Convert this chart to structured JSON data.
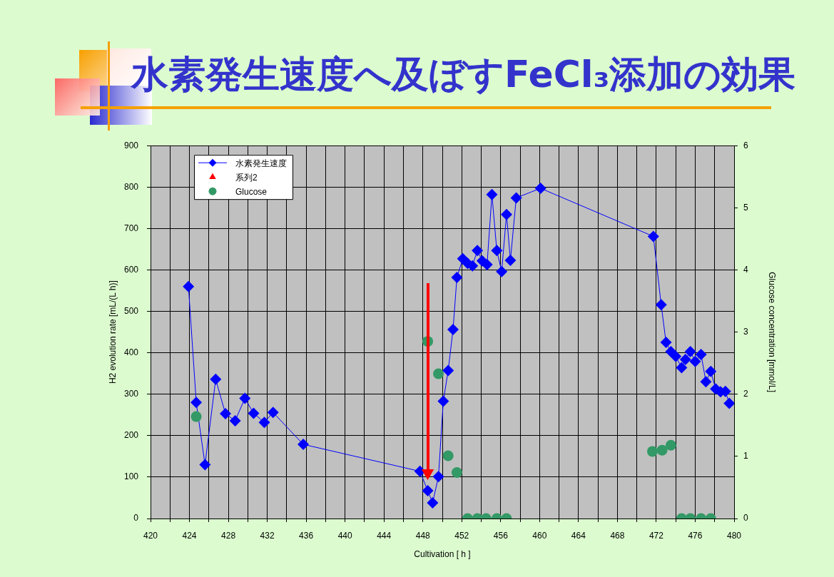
{
  "chart_data": {
    "type": "line",
    "title": "水素発生速度へ及ぼすFeCl₃添加の効果",
    "xlabel": "Cultivation [ h ]",
    "ylabel": "H2 evolution rate [mL/(L h)]",
    "y2label": "Glucose concentration [mmol/L]",
    "xlim": [
      420,
      480
    ],
    "xticks": [
      420,
      {
        "value": 422,
        "label": null
      },
      424,
      {
        "value": 426,
        "label": null
      },
      428,
      {
        "value": 430,
        "label": null
      },
      432,
      {
        "value": 434,
        "label": null
      },
      436,
      {
        "value": 438,
        "label": null
      },
      440,
      {
        "value": 442,
        "label": null
      },
      444,
      {
        "value": 446,
        "label": null
      },
      448,
      {
        "value": 450,
        "label": null
      },
      452,
      {
        "value": 454,
        "label": null
      },
      456,
      {
        "value": 458,
        "label": null
      },
      460,
      {
        "value": 462,
        "label": null
      },
      464,
      {
        "value": 466,
        "label": null
      },
      468,
      {
        "value": 470,
        "label": null
      },
      472,
      {
        "value": 474,
        "label": null
      },
      476,
      {
        "value": 478,
        "label": null
      },
      480
    ],
    "ylim": [
      0,
      900
    ],
    "yticks": [
      0,
      100,
      200,
      300,
      400,
      500,
      600,
      700,
      800,
      900
    ],
    "y2lim": [
      0,
      6
    ],
    "y2ticks": [
      0,
      1,
      2,
      3,
      4,
      5,
      6
    ],
    "grid": true,
    "legend": "top left",
    "series": [
      {
        "name": "水素発生速度",
        "color": "#0000ff",
        "marker": "diamond",
        "x": [
          423.9,
          424.7,
          425.6,
          426.7,
          427.7,
          428.7,
          429.7,
          430.6,
          431.7,
          432.6,
          435.7,
          447.7,
          448.5,
          449.0,
          449.6,
          450.1,
          450.6,
          451.1,
          451.5,
          452.1,
          452.6,
          453.1,
          453.6,
          454.1,
          454.6,
          455.1,
          455.6,
          456.1,
          456.6,
          457.0,
          457.6,
          460.1,
          471.7,
          472.5,
          473.0,
          473.5,
          474.0,
          474.6,
          475.0,
          475.5,
          476.0,
          476.6,
          477.1,
          477.6,
          478.1,
          478.6,
          479.1,
          479.5
        ],
        "values": [
          560,
          280,
          130,
          336,
          253,
          236,
          290,
          254,
          232,
          256,
          179,
          114,
          67,
          38,
          101,
          283,
          357,
          456,
          582,
          627,
          616,
          610,
          647,
          622,
          613,
          782,
          647,
          596,
          734,
          623,
          774,
          797,
          681,
          516,
          425,
          403,
          391,
          364,
          384,
          403,
          379,
          396,
          330,
          355,
          313,
          306,
          307,
          278
        ]
      },
      {
        "name": "系列2",
        "type": "scatter",
        "color": "#ff0000",
        "marker": "triangle",
        "x": [
          448.5
        ],
        "values": [
          110
        ]
      },
      {
        "name": "Glucose",
        "type": "scatter",
        "axis": "y2",
        "color": "#339966",
        "marker": "circle",
        "x": [
          424.7,
          448.5,
          449.6,
          450.6,
          451.5,
          452.6,
          453.6,
          454.5,
          455.6,
          456.6,
          471.6,
          472.6,
          473.5,
          474.6,
          475.5,
          476.6,
          477.6
        ],
        "values": [
          1.64,
          2.85,
          2.33,
          1.01,
          0.74,
          0,
          0,
          0,
          0,
          0,
          1.08,
          1.1,
          1.18,
          0,
          0,
          0,
          0
        ]
      }
    ]
  }
}
